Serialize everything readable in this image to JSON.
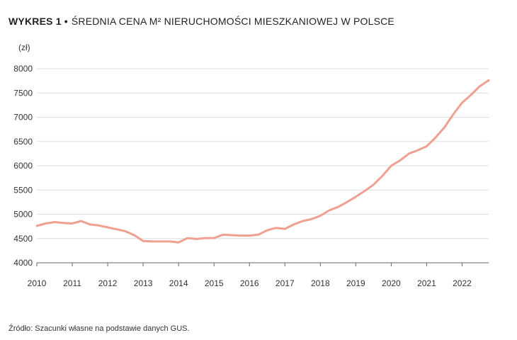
{
  "header": {
    "label": "WYKRES 1",
    "bullet": "•",
    "title": "ŚREDNIA CENA M² NIERUCHOMOŚCI MIESZKANIOWEJ W POLSCE"
  },
  "source": "Źródło: Szacunki własne na podstawie danych GUS.",
  "colors": {
    "line": "#f0a090",
    "grid": "#dddddd",
    "axis": "#666666",
    "text": "#333333"
  },
  "chart_data": {
    "type": "line",
    "title": "ŚREDNIA CENA M² NIERUCHOMOŚCI MIESZKANIOWEJ W POLSCE",
    "xlabel": "",
    "ylabel": "(zł)",
    "ylim": [
      4000,
      8000
    ],
    "xlim": [
      2010,
      2022.75
    ],
    "yticks": [
      4000,
      4500,
      5000,
      5500,
      6000,
      6500,
      7000,
      7500,
      8000
    ],
    "xticks": [
      "2010",
      "2011",
      "2012",
      "2013",
      "2014",
      "2015",
      "2016",
      "2017",
      "2018",
      "2019",
      "2020",
      "2021",
      "2022"
    ],
    "grid": "horizontal",
    "series": [
      {
        "color": "#f0a090",
        "x": [
          2010,
          2010.25,
          2010.5,
          2010.75,
          2011,
          2011.25,
          2011.5,
          2011.75,
          2012,
          2012.25,
          2012.5,
          2012.75,
          2013,
          2013.25,
          2013.5,
          2013.75,
          2014,
          2014.25,
          2014.5,
          2014.75,
          2015,
          2015.25,
          2015.5,
          2015.75,
          2016,
          2016.25,
          2016.5,
          2016.75,
          2017,
          2017.25,
          2017.5,
          2017.75,
          2018,
          2018.25,
          2018.5,
          2018.75,
          2019,
          2019.25,
          2019.5,
          2019.75,
          2020,
          2020.25,
          2020.5,
          2020.75,
          2021,
          2021.25,
          2021.5,
          2021.75,
          2022,
          2022.25,
          2022.5,
          2022.75
        ],
        "values": [
          4760,
          4810,
          4840,
          4820,
          4810,
          4860,
          4790,
          4770,
          4730,
          4690,
          4650,
          4570,
          4450,
          4440,
          4440,
          4440,
          4420,
          4510,
          4490,
          4510,
          4510,
          4580,
          4570,
          4560,
          4560,
          4580,
          4670,
          4720,
          4700,
          4790,
          4860,
          4900,
          4970,
          5080,
          5150,
          5250,
          5360,
          5480,
          5610,
          5790,
          6000,
          6110,
          6250,
          6320,
          6400,
          6580,
          6790,
          7060,
          7300,
          7460,
          7640,
          7760
        ]
      }
    ]
  }
}
